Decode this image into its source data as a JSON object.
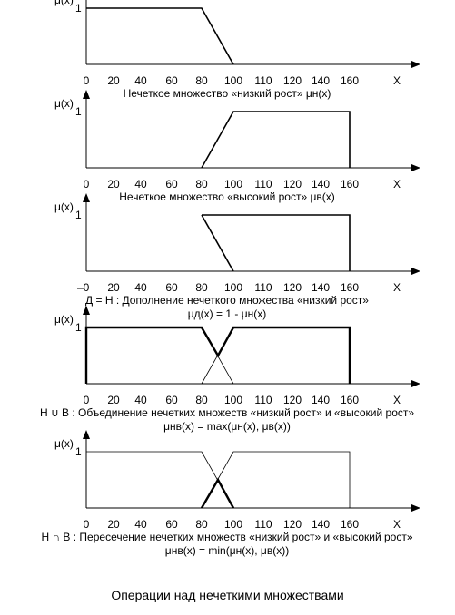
{
  "x_ticks": [
    "0",
    "20",
    "40",
    "60",
    "80",
    "100",
    "110",
    "120",
    "140",
    "160"
  ],
  "x_axis_label": "X",
  "y_axis_label": "μ(x)",
  "y_tick": "1",
  "panels": [
    {
      "caption": [
        "Нечеткое множество «низкий рост» μн(x)"
      ],
      "curves": [
        {
          "style": "normal",
          "points": [
            [
              0,
              1
            ],
            [
              80,
              1
            ],
            [
              100,
              0
            ]
          ]
        }
      ]
    },
    {
      "caption": [
        "Нечеткое множество «высокий рост» μв(x)"
      ],
      "curves": [
        {
          "style": "normal",
          "points": [
            [
              80,
              0
            ],
            [
              100,
              1
            ],
            [
              160,
              1
            ],
            [
              160,
              0
            ]
          ]
        }
      ]
    },
    {
      "caption": [
        "Д = Н : Дополнение нечеткого множества «низкий рост»",
        "μд(x) = 1 - μн(x)"
      ],
      "curves": [
        {
          "style": "normal",
          "points": [
            [
              80,
              1
            ],
            [
              100,
              0
            ]
          ]
        },
        {
          "style": "normal",
          "points": [
            [
              80,
              1
            ],
            [
              160,
              1
            ],
            [
              160,
              0
            ]
          ]
        }
      ]
    },
    {
      "caption": [
        "Н ∪ В : Объединение нечетких множеств «низкий рост» и «высокий рост»",
        "μнв(x) = max(μн(x), μв(x))"
      ],
      "curves": [
        {
          "style": "thin",
          "points": [
            [
              80,
              1
            ],
            [
              100,
              0
            ]
          ]
        },
        {
          "style": "thin",
          "points": [
            [
              80,
              0
            ],
            [
              100,
              1
            ]
          ]
        },
        {
          "style": "bold",
          "points": [
            [
              0,
              0
            ],
            [
              0,
              1
            ],
            [
              80,
              1
            ],
            [
              90,
              0.5
            ],
            [
              100,
              1
            ],
            [
              160,
              1
            ],
            [
              160,
              0
            ]
          ]
        }
      ]
    },
    {
      "caption": [
        "Н ∩ В : Пересечение нечетких множеств «низкий рост» и «высокий рост»",
        "μнв(x) = min(μн(x), μв(x))"
      ],
      "curves": [
        {
          "style": "thin",
          "points": [
            [
              0,
              1
            ],
            [
              80,
              1
            ],
            [
              100,
              0
            ]
          ]
        },
        {
          "style": "thin",
          "points": [
            [
              80,
              0
            ],
            [
              100,
              1
            ],
            [
              160,
              1
            ],
            [
              160,
              0
            ]
          ]
        },
        {
          "style": "bold",
          "points": [
            [
              80,
              0
            ],
            [
              90,
              0.5
            ],
            [
              100,
              0
            ]
          ]
        }
      ]
    }
  ],
  "footer_title": "Операции над нечеткими множествами"
}
